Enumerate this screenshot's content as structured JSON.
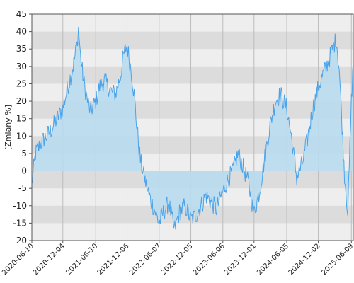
{
  "chart_data": {
    "type": "area",
    "ylabel": "[Zmiany %]",
    "ylim": [
      -20,
      45
    ],
    "yticks": [
      "45",
      "40",
      "35",
      "30",
      "25",
      "20",
      "15",
      "10",
      "5",
      "0",
      "-5",
      "-10",
      "-15",
      "-20"
    ],
    "xticks": [
      "2020-06-10",
      "2020-12-04",
      "2021-06-10",
      "2021-12-06",
      "2022-06-07",
      "2022-12-05",
      "2023-06-06",
      "2023-12-01",
      "2024-06-05",
      "2024-12-02",
      "2025-06-09"
    ],
    "x_range": [
      "2020-06-10",
      "2025-06-20"
    ],
    "grid": true,
    "colors": {
      "line": "#4aa3ea",
      "fill": "#b8dcef",
      "band_dark": "#dcdcdc",
      "band_light": "#eeeeee"
    },
    "series": [
      {
        "x": [
          "2020-06-10",
          "2020-07-01",
          "2020-08-01",
          "2020-09-01",
          "2020-10-01",
          "2020-11-01",
          "2020-12-04",
          "2021-01-01",
          "2021-02-01",
          "2021-02-22",
          "2021-03-03",
          "2021-03-15",
          "2021-04-01",
          "2021-04-20",
          "2021-05-10",
          "2021-06-10",
          "2021-07-01",
          "2021-08-01",
          "2021-09-01",
          "2021-10-01",
          "2021-11-01",
          "2021-11-15",
          "2021-12-06",
          "2022-01-01",
          "2022-01-15",
          "2022-02-01",
          "2022-02-20",
          "2022-03-15",
          "2022-04-10",
          "2022-05-10",
          "2022-06-07",
          "2022-07-01",
          "2022-08-01",
          "2022-09-01",
          "2022-10-01",
          "2022-11-01",
          "2022-12-05",
          "2023-01-01",
          "2023-02-01",
          "2023-03-01",
          "2023-04-01",
          "2023-05-01",
          "2023-06-06",
          "2023-07-01",
          "2023-08-01",
          "2023-09-01",
          "2023-10-01",
          "2023-11-01",
          "2023-12-01",
          "2024-01-01",
          "2024-02-01",
          "2024-03-01",
          "2024-04-01",
          "2024-05-01",
          "2024-06-05",
          "2024-07-01",
          "2024-08-01",
          "2024-09-01",
          "2024-10-01",
          "2024-11-01",
          "2024-12-02",
          "2025-01-01",
          "2025-02-01",
          "2025-03-01",
          "2025-03-15",
          "2025-04-01",
          "2025-04-10",
          "2025-05-01",
          "2025-05-20",
          "2025-06-09",
          "2025-06-20"
        ],
        "y": [
          -4,
          5,
          8,
          10,
          12,
          15,
          18,
          24,
          30,
          36,
          41,
          33,
          26,
          21,
          17,
          20,
          24,
          26,
          23,
          22,
          28,
          33,
          36,
          28,
          22,
          12,
          3,
          -2,
          -7,
          -11,
          -15,
          -12,
          -9,
          -17,
          -12,
          -10,
          -14,
          -13,
          -10,
          -7,
          -9,
          -11,
          -6,
          -3,
          0,
          5,
          1,
          -4,
          -12,
          -6,
          4,
          13,
          20,
          22,
          18,
          10,
          -2,
          2,
          9,
          18,
          24,
          28,
          32,
          36,
          38,
          29,
          20,
          -1,
          -12,
          20,
          31
        ]
      }
    ]
  }
}
